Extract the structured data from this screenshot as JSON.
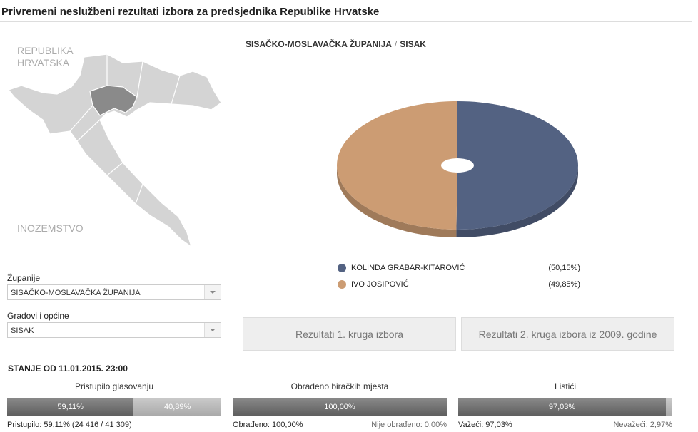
{
  "header": {
    "title": "Privremeni neslužbeni rezultati izbora za predsjednika Republike Hrvatske"
  },
  "map": {
    "labels": [
      "REPUBLIKA",
      "HRVATSKA",
      "INOZEMSTVO"
    ]
  },
  "filters": [
    {
      "label": "Županije",
      "value": "SISAČKO-MOSLAVAČKA ŽUPANIJA"
    },
    {
      "label": "Gradovi i općine",
      "value": "SISAK"
    }
  ],
  "breadcrumb": {
    "county": "SISAČKO-MOSLAVAČKA ŽUPANIJA",
    "separator": "/",
    "city": "SISAK"
  },
  "chart_data": {
    "type": "pie",
    "categories": [
      "KOLINDA GRABAR-KITAROVIĆ",
      "IVO JOSIPOVIĆ"
    ],
    "values": [
      50.15,
      49.85
    ],
    "value_labels": [
      "(50,15%)",
      "(49,85%)"
    ],
    "colors": [
      "#536282",
      "#cc9c73"
    ]
  },
  "buttons": [
    "Rezultati 1. kruga izbora",
    "Rezultati 2. kruga izbora iz 2009. godine"
  ],
  "status": {
    "title": "STANJE OD 11.01.2015. 23:00",
    "panels": [
      {
        "title": "Pristupilo glasovanju",
        "segments": [
          {
            "value": 59.11,
            "label": "59,11%"
          },
          {
            "value": 40.89,
            "label": "40,89%"
          }
        ],
        "footer": [
          "Pristupilo: 59,11% (24 416 / 41 309)"
        ]
      },
      {
        "title": "Obrađeno biračkih mjesta",
        "segments": [
          {
            "value": 100,
            "label": "100,00%"
          }
        ],
        "footer": [
          "Obrađeno: 100,00%",
          "Nije obrađeno: 0,00%"
        ]
      },
      {
        "title": "Listići",
        "segments": [
          {
            "value": 97.03,
            "label": "97,03%"
          },
          {
            "value": 2.97
          }
        ],
        "footer": [
          "Važeći: 97,03%",
          "Nevažeći: 2,97%"
        ]
      }
    ]
  }
}
